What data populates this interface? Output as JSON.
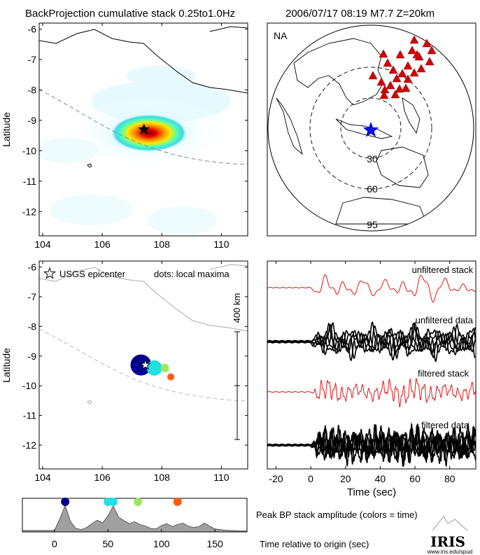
{
  "header": {
    "left": "BackProjection cumulative stack 0.25to1.0Hz",
    "right": "2006/07/17 08:19  M7.7  Z=20km"
  },
  "colors": {
    "red_trace": "#e01414",
    "black_trace": "#000000",
    "station_marker": "#d40000",
    "epicenter_star": "#1010e0",
    "hot_core": "#e00000",
    "area_fill": "#a0a0a0"
  },
  "panels": {
    "map_top": {
      "ylabel": "Latitude",
      "xticks": [
        "104",
        "106",
        "108",
        "110"
      ],
      "yticks": [
        "-6",
        "-7",
        "-8",
        "-9",
        "-10",
        "-11",
        "-12"
      ]
    },
    "globe": {
      "label": "NA",
      "distance_labels": [
        "30",
        "60",
        "95"
      ]
    },
    "map_bottom": {
      "ylabel": "Latitude",
      "xticks": [
        "104",
        "106",
        "108",
        "110"
      ],
      "yticks": [
        "-6",
        "-7",
        "-8",
        "-9",
        "-10",
        "-11",
        "-12"
      ],
      "legend_star": "USGS epicenter",
      "legend_dots": "dots: local maxima",
      "scale_label": "400 km"
    },
    "traces": {
      "labels": [
        "unfiltered stack",
        "unfiltered data",
        "filtered stack",
        "filtered data"
      ],
      "xticks": [
        "-20",
        "0",
        "20",
        "40",
        "60",
        "80"
      ],
      "xlabel": "Time (sec)"
    },
    "amplitude": {
      "label1": "Peak BP stack amplitude (colors = time)",
      "label2": "Time relative to origin (sec)",
      "xticks": [
        "0",
        "50",
        "100",
        "150"
      ]
    }
  },
  "logo": {
    "name": "IRIS",
    "url": "www.iris.edu/spud"
  },
  "chart_data": [
    {
      "type": "heatmap",
      "panel": "map_top",
      "xlim": [
        104,
        111
      ],
      "ylim": [
        -12.8,
        -5.8
      ],
      "ylabel": "Latitude",
      "peak": {
        "lon": 107.4,
        "lat": -9.3
      },
      "epicenter": {
        "lon": 107.4,
        "lat": -9.3
      }
    },
    {
      "type": "scatter",
      "panel": "map_bottom",
      "xlim": [
        104,
        111
      ],
      "ylim": [
        -12.8,
        -5.8
      ],
      "ylabel": "Latitude",
      "epicenter": {
        "lon": 107.4,
        "lat": -9.3
      },
      "local_maxima": [
        {
          "lon": 107.3,
          "lat": -9.3,
          "color": "#000090",
          "time": 10
        },
        {
          "lon": 107.75,
          "lat": -9.4,
          "color": "#20e0e0",
          "time": 55
        },
        {
          "lon": 108.1,
          "lat": -9.4,
          "color": "#9be85a",
          "time": 80
        },
        {
          "lon": 108.3,
          "lat": -9.7,
          "color": "#ff5a10",
          "time": 115
        }
      ],
      "scale_km": 400
    },
    {
      "type": "line",
      "panel": "traces",
      "xlim": [
        -25,
        95
      ],
      "xlabel": "Time (sec)",
      "series": [
        {
          "name": "unfiltered stack"
        },
        {
          "name": "unfiltered data"
        },
        {
          "name": "filtered stack"
        },
        {
          "name": "filtered data"
        }
      ]
    },
    {
      "type": "area",
      "panel": "amplitude",
      "xlim": [
        -30,
        180
      ],
      "x": [
        -30,
        0,
        5,
        10,
        15,
        20,
        25,
        30,
        35,
        40,
        45,
        50,
        55,
        60,
        65,
        70,
        75,
        80,
        85,
        90,
        95,
        100,
        105,
        110,
        115,
        120,
        125,
        130,
        135,
        140,
        145,
        150,
        155,
        160,
        165,
        170,
        175,
        180
      ],
      "y": [
        0.05,
        0.05,
        0.45,
        0.9,
        0.35,
        0.12,
        0.08,
        0.15,
        0.28,
        0.4,
        0.3,
        0.55,
        0.88,
        0.5,
        0.38,
        0.28,
        0.35,
        0.25,
        0.2,
        0.12,
        0.1,
        0.22,
        0.28,
        0.18,
        0.25,
        0.3,
        0.2,
        0.15,
        0.18,
        0.3,
        0.2,
        0.1,
        0.08,
        0.06,
        0.05,
        0.04,
        0.03,
        0.03
      ],
      "peaks": [
        {
          "time": 10,
          "color": "#000090"
        },
        {
          "time": 50,
          "color": "#20e0e0"
        },
        {
          "time": 55,
          "color": "#20e0e0"
        },
        {
          "time": 78,
          "color": "#9be85a"
        },
        {
          "time": 115,
          "color": "#ff5a10"
        }
      ]
    }
  ]
}
